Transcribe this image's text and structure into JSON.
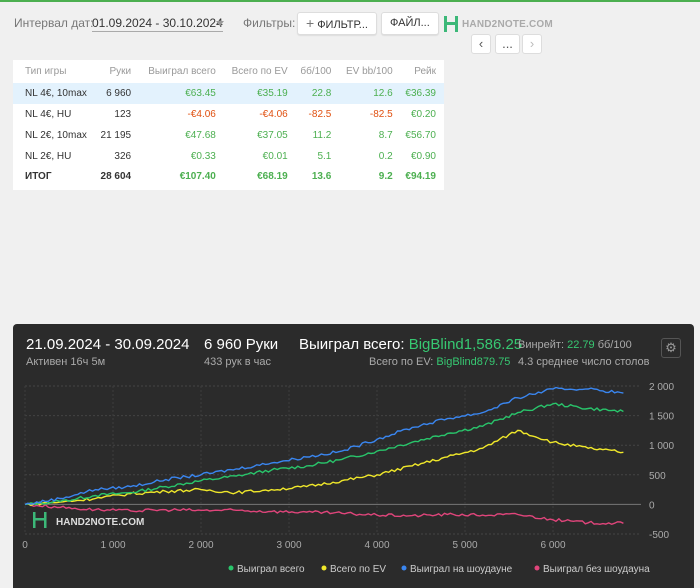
{
  "toolbar": {
    "date_label": "Интервал дат:",
    "date_range": "01.09.2024 - 30.10.2024",
    "filters_label": "Фильтры:",
    "filter_button": "ФИЛЬТР...",
    "file_button": "ФАЙЛ...",
    "logo_text": "HAND2NOTE.COM",
    "prev": "‹",
    "more": "...",
    "next": "›"
  },
  "table": {
    "headers": [
      "Тип игры",
      "Руки",
      "Выиграл всего",
      "Всего по EV",
      "бб/100",
      "EV bb/100",
      "Рейк"
    ],
    "rows": [
      [
        "NL 4€, 10max",
        "6 960",
        "€63.45",
        "€35.19",
        "22.8",
        "12.6",
        "€36.39"
      ],
      [
        "NL 4€, HU",
        "123",
        "-€4.06",
        "-€4.06",
        "-82.5",
        "-82.5",
        "€0.20"
      ],
      [
        "NL 2€, 10max",
        "21 195",
        "€47.68",
        "€37.05",
        "11.2",
        "8.7",
        "€56.70"
      ],
      [
        "NL 2€, HU",
        "326",
        "€0.33",
        "€0.01",
        "5.1",
        "0.2",
        "€0.90"
      ]
    ],
    "total": [
      "ИТОГ",
      "28 604",
      "€107.40",
      "€68.19",
      "13.6",
      "9.2",
      "€94.19"
    ]
  },
  "summary": {
    "period": "21.09.2024 - 30.09.2024",
    "active": "Активен 16ч 5м",
    "hands": "6 960 Руки",
    "hands_per_hour": "433 рук в час",
    "won_label": "Выиграл всего:",
    "won_value": "BigBlind1,586.25",
    "ev_label": "Всего по EV:",
    "ev_value": "BigBlind879.75",
    "winrate_label": "Винрейт:",
    "winrate_value": "22.79",
    "winrate_unit": "бб/100",
    "tables": "4.3 среднее число столов"
  },
  "chart_data": {
    "type": "line",
    "xlim": [
      0,
      7000
    ],
    "ylim": [
      -500,
      2000
    ],
    "x_ticks": [
      "0",
      "1 000",
      "2 000",
      "3 000",
      "4 000",
      "5 000",
      "6 000"
    ],
    "y_ticks": [
      "2 000",
      "1 500",
      "1 000",
      "500",
      "0",
      "-500"
    ],
    "watermark": "HAND2NOTE.COM",
    "series": [
      {
        "name": "Выиграл всего",
        "color": "#29c56b",
        "x": [
          0,
          400,
          800,
          1200,
          1600,
          2000,
          2400,
          2800,
          3200,
          3600,
          4000,
          4400,
          4800,
          5200,
          5600,
          6000,
          6400,
          6800
        ],
        "y": [
          0,
          50,
          150,
          200,
          300,
          400,
          480,
          580,
          650,
          760,
          900,
          1050,
          1200,
          1320,
          1550,
          1700,
          1620,
          1570
        ]
      },
      {
        "name": "Всего по EV",
        "color": "#f0e82a",
        "x": [
          0,
          400,
          800,
          1200,
          1600,
          2000,
          2400,
          2800,
          3200,
          3600,
          4000,
          4400,
          4800,
          5200,
          5600,
          6000,
          6400,
          6800
        ],
        "y": [
          0,
          40,
          100,
          180,
          220,
          250,
          200,
          250,
          300,
          400,
          500,
          650,
          800,
          950,
          1250,
          1050,
          950,
          880
        ]
      },
      {
        "name": "Выиграл на шоудауне",
        "color": "#3a86f0",
        "x": [
          0,
          400,
          800,
          1200,
          1600,
          2000,
          2400,
          2800,
          3200,
          3600,
          4000,
          4400,
          4800,
          5200,
          5600,
          6000,
          6400,
          6800
        ],
        "y": [
          0,
          100,
          250,
          300,
          420,
          500,
          600,
          700,
          800,
          900,
          1100,
          1300,
          1450,
          1550,
          1800,
          1950,
          1950,
          1880
        ]
      },
      {
        "name": "Выиграл без шоудауна",
        "color": "#e0457b",
        "x": [
          0,
          400,
          800,
          1200,
          1600,
          2000,
          2400,
          2800,
          3200,
          3600,
          4000,
          4400,
          4800,
          5200,
          5600,
          6000,
          6400,
          6800
        ],
        "y": [
          0,
          -50,
          -90,
          -110,
          -90,
          -100,
          -100,
          -120,
          -130,
          -150,
          -180,
          -190,
          -170,
          -180,
          -170,
          -260,
          -310,
          -320
        ]
      }
    ]
  }
}
